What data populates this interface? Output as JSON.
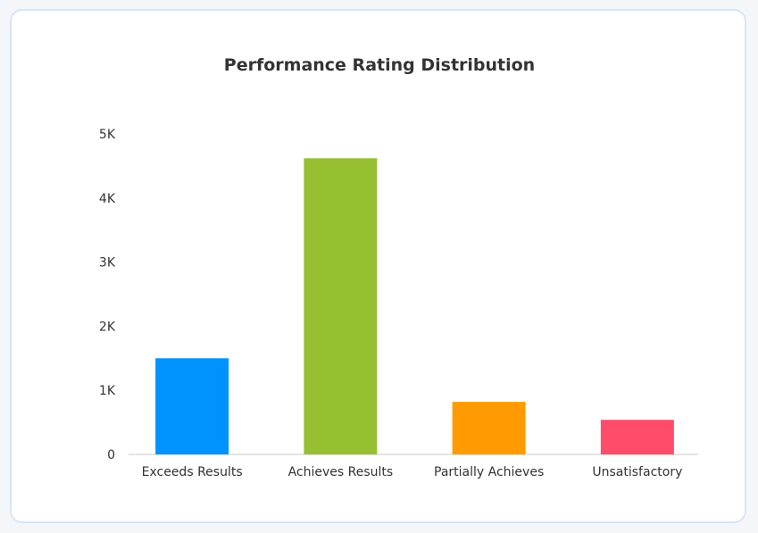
{
  "chart_data": {
    "type": "bar",
    "title": "Performance Rating Distribution",
    "xlabel": "",
    "ylabel": "",
    "categories": [
      "Exceeds Results",
      "Achieves Results",
      "Partially Achieves",
      "Unsatisfactory"
    ],
    "values": [
      1500,
      4620,
      820,
      540
    ],
    "colors": [
      "#0093ff",
      "#97bf32",
      "#ff9a00",
      "#ff4c6a"
    ],
    "ylim": [
      0,
      5000
    ],
    "yticks": [
      0,
      1000,
      2000,
      3000,
      4000,
      5000
    ],
    "ytick_labels": [
      "0",
      "1K",
      "2K",
      "3K",
      "4K",
      "5K"
    ],
    "grid": false,
    "legend": "none"
  }
}
